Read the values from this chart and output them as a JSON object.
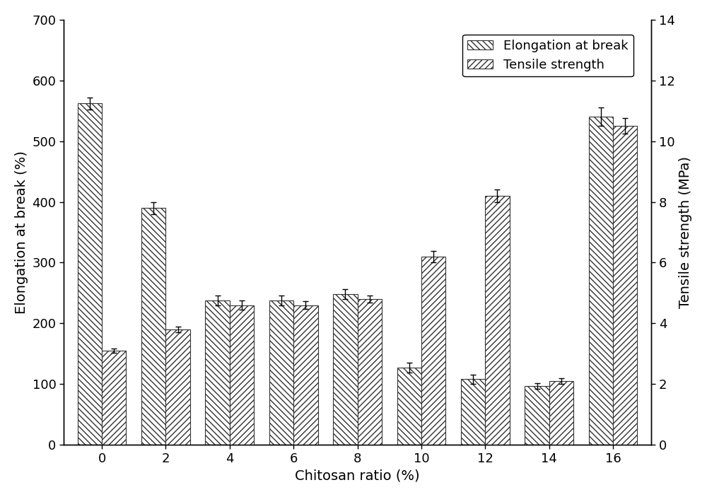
{
  "categories": [
    0,
    2,
    4,
    6,
    8,
    10,
    12,
    14,
    16
  ],
  "elongation_values": [
    562,
    390,
    238,
    238,
    248,
    127,
    108,
    97,
    540
  ],
  "elongation_errors": [
    10,
    10,
    8,
    8,
    8,
    8,
    8,
    5,
    15
  ],
  "tensile_values": [
    3.1,
    3.8,
    4.6,
    4.6,
    4.8,
    6.2,
    8.2,
    2.1,
    10.5
  ],
  "tensile_errors": [
    0.08,
    0.1,
    0.15,
    0.12,
    0.12,
    0.18,
    0.2,
    0.1,
    0.25
  ],
  "left_ylim": [
    0,
    700
  ],
  "left_yticks": [
    0,
    100,
    200,
    300,
    400,
    500,
    600,
    700
  ],
  "right_ylim": [
    0,
    14
  ],
  "right_yticks": [
    0,
    2,
    4,
    6,
    8,
    10,
    12,
    14
  ],
  "xlabel": "Chitosan ratio (%)",
  "ylabel_left": "Elongation at break (%)",
  "ylabel_right": "Tensile strength (MPa)",
  "legend_labels": [
    "Elongation at break",
    "Tensile strength"
  ],
  "bar_width": 0.38,
  "bar_color": "white",
  "edgecolor": "#333333",
  "label_fontsize": 14,
  "tick_fontsize": 13,
  "legend_fontsize": 13
}
